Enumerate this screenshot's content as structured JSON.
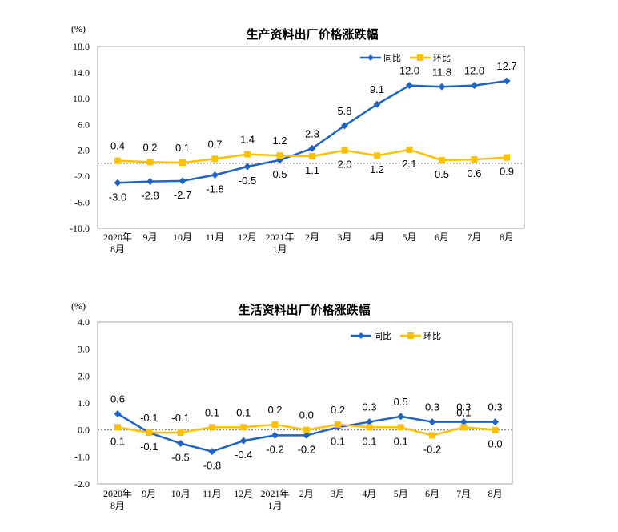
{
  "chart_data": [
    {
      "type": "line",
      "title": "生产资料出厂价格涨跌幅",
      "unit": "(%)",
      "categories": [
        [
          "2020年",
          "8月"
        ],
        [
          "9月"
        ],
        [
          "10月"
        ],
        [
          "11月"
        ],
        [
          "12月"
        ],
        [
          "2021年",
          "1月"
        ],
        [
          "2月"
        ],
        [
          "3月"
        ],
        [
          "4月"
        ],
        [
          "5月"
        ],
        [
          "6月"
        ],
        [
          "7月"
        ],
        [
          "8月"
        ]
      ],
      "ylim": [
        -10.0,
        18.0
      ],
      "yticks": [
        "18.0",
        "14.0",
        "10.0",
        "6.0",
        "2.0",
        "-2.0",
        "-6.0",
        "-10.0"
      ],
      "series": [
        {
          "name": "同比",
          "color": "#1f64c4",
          "marker": "diamond",
          "values": [
            -3.0,
            -2.8,
            -2.7,
            -1.8,
            -0.5,
            0.5,
            2.3,
            5.8,
            9.1,
            12.0,
            11.8,
            12.0,
            12.7
          ],
          "labels": [
            "-3.0",
            "-2.8",
            "-2.7",
            "-1.8",
            "-0.5",
            "0.5",
            "2.3",
            "5.8",
            "9.1",
            "12.0",
            "11.8",
            "12.0",
            "12.7"
          ]
        },
        {
          "name": "环比",
          "color": "#ffc000",
          "marker": "square",
          "values": [
            0.4,
            0.2,
            0.1,
            0.7,
            1.4,
            1.2,
            1.1,
            2.0,
            1.2,
            2.1,
            0.5,
            0.6,
            0.9
          ],
          "labels": [
            "0.4",
            "0.2",
            "0.1",
            "0.7",
            "1.4",
            "1.2",
            "1.1",
            "2.0",
            "1.2",
            "2.1",
            "0.5",
            "0.6",
            "0.9"
          ]
        }
      ],
      "grid": false,
      "legend": "top-right"
    },
    {
      "type": "line",
      "title": "生活资料出厂价格涨跌幅",
      "unit": "(%)",
      "categories": [
        [
          "2020年",
          "8月"
        ],
        [
          "9月"
        ],
        [
          "10月"
        ],
        [
          "11月"
        ],
        [
          "12月"
        ],
        [
          "2021年",
          "1月"
        ],
        [
          "2月"
        ],
        [
          "3月"
        ],
        [
          "4月"
        ],
        [
          "5月"
        ],
        [
          "6月"
        ],
        [
          "7月"
        ],
        [
          "8月"
        ]
      ],
      "ylim": [
        -2.0,
        4.0
      ],
      "yticks": [
        "4.0",
        "3.0",
        "2.0",
        "1.0",
        "0.0",
        "-1.0",
        "-2.0"
      ],
      "series": [
        {
          "name": "同比",
          "color": "#1f64c4",
          "marker": "diamond",
          "values": [
            0.6,
            -0.1,
            -0.5,
            -0.8,
            -0.4,
            -0.2,
            -0.2,
            0.1,
            0.3,
            0.5,
            0.3,
            0.3,
            0.3
          ],
          "labels": [
            "0.6",
            "-0.1",
            "-0.5",
            "-0.8",
            "-0.4",
            "-0.2",
            "-0.2",
            "0.1",
            "0.3",
            "0.5",
            "0.3",
            "0.3",
            "0.3"
          ]
        },
        {
          "name": "环比",
          "color": "#ffc000",
          "marker": "square",
          "values": [
            0.1,
            -0.1,
            -0.1,
            0.1,
            0.1,
            0.2,
            0.0,
            0.2,
            0.1,
            0.1,
            -0.2,
            0.1,
            0.0
          ],
          "labels": [
            "0.1",
            "-0.1",
            "-0.1",
            "0.1",
            "0.1",
            "0.2",
            "0.0",
            "0.2",
            "0.1",
            "0.1",
            "-0.2",
            "0.1",
            "0.0"
          ]
        }
      ],
      "grid": false,
      "legend": "top-right"
    }
  ]
}
